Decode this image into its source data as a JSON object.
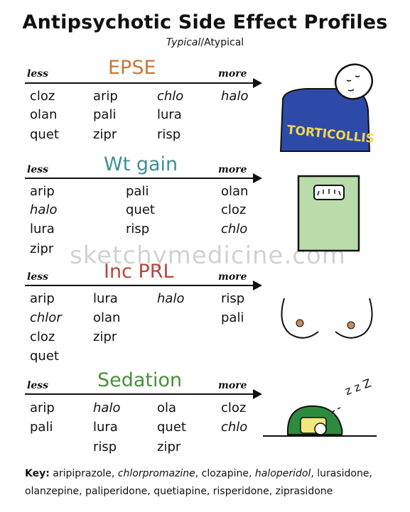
{
  "title": "Antipsychotic Side Effect Profiles",
  "subtitle": {
    "typical": "Typical",
    "slash": "/",
    "atypical": "Atypical"
  },
  "axis": {
    "less": "less",
    "more": "more"
  },
  "colors": {
    "epse": "#c8763a",
    "wt_gain": "#3f8f8f",
    "inc_prl": "#b8453a",
    "sedation": "#4c8f3a",
    "scale_green": "#b9dcaa",
    "shirt_blue": "#2d4aa8",
    "pillow_green": "#2e8b3e"
  },
  "sections": {
    "epse": {
      "label": "EPSE",
      "drugs": {
        "c1": [
          "cloz",
          "olan",
          "quet"
        ],
        "c2": [
          "arip",
          "pali",
          "zipr"
        ],
        "c3": [
          "chlo",
          "lura",
          "risp"
        ],
        "c4": [
          "halo"
        ]
      }
    },
    "wt_gain": {
      "label": "Wt gain",
      "drugs": {
        "c1": [
          "arip",
          "halo",
          "lura",
          "zipr"
        ],
        "c2": [
          "pali",
          "quet",
          "risp"
        ],
        "c4": [
          "olan",
          "cloz",
          "chlo"
        ]
      }
    },
    "inc_prl": {
      "label": "Inc PRL",
      "drugs": {
        "c1": [
          "arip",
          "chlor",
          "cloz",
          "quet"
        ],
        "c2": [
          "lura",
          "olan",
          "zipr"
        ],
        "c3": [
          "halo"
        ],
        "c4": [
          "risp",
          "pali"
        ]
      }
    },
    "sedation": {
      "label": "Sedation",
      "drugs": {
        "c1": [
          "arip",
          "pali"
        ],
        "c2": [
          "halo",
          "lura",
          "risp"
        ],
        "c3": [
          "ola",
          "quet",
          "zipr"
        ],
        "c4": [
          "cloz",
          "chlo"
        ]
      }
    }
  },
  "illustrations": {
    "torticollis_text": "TORTICOLLIS",
    "sleep_z": "z z Z"
  },
  "watermark": "sketchymedicine.com",
  "key": {
    "label": "Key:",
    "d1": "aripiprazole, ",
    "d2": "chlorpromazine",
    "d3": ", clozapine, ",
    "d4": "haloperidol",
    "d5": ", lurasidone,",
    "line2": "olanzepine, paliperidone, quetiapine, risperidone, ziprasidone"
  }
}
